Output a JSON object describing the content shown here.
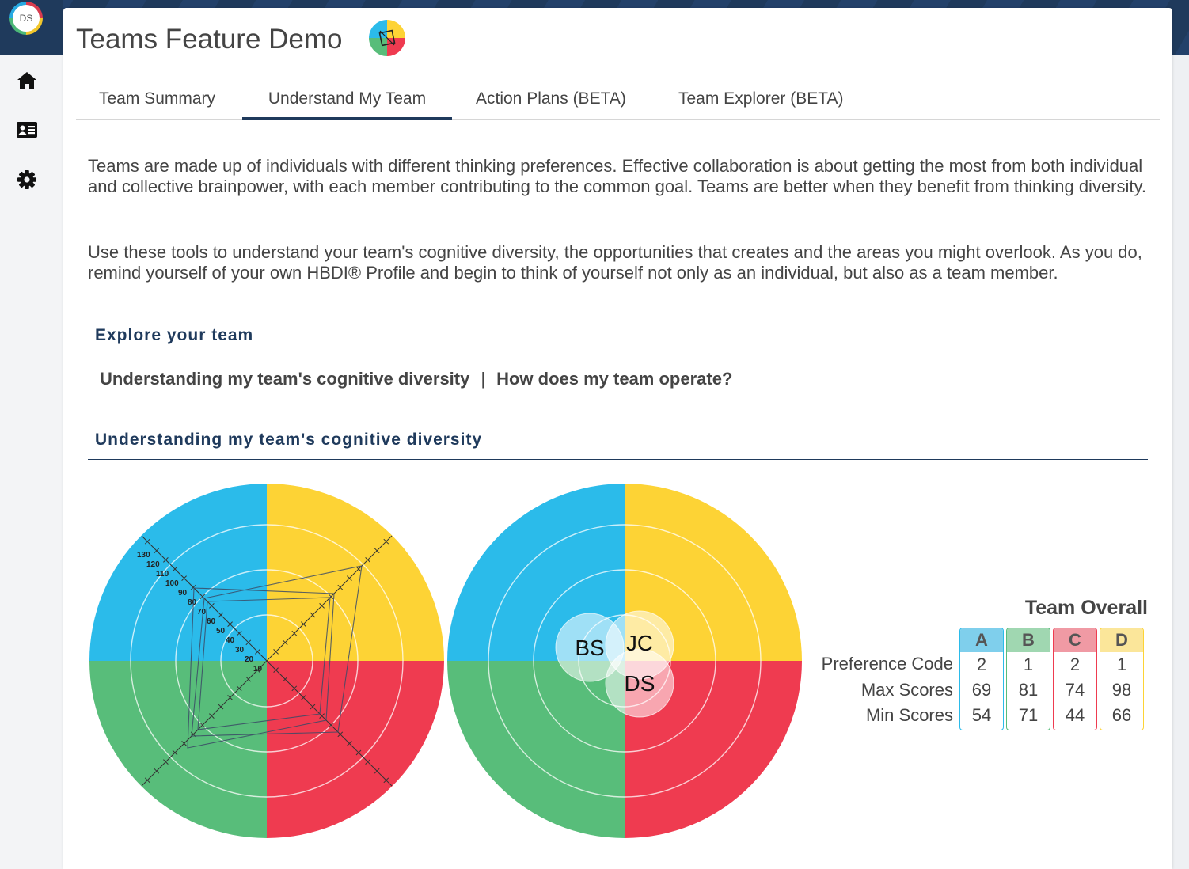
{
  "sidebar": {
    "avatar_initials": "DS",
    "nav": [
      {
        "name": "home-icon"
      },
      {
        "name": "profile-card-icon"
      },
      {
        "name": "settings-gear-icon"
      }
    ]
  },
  "page": {
    "title": "Teams Feature Demo"
  },
  "tabs": [
    {
      "label": "Team Summary",
      "active": false
    },
    {
      "label": "Understand My Team",
      "active": true
    },
    {
      "label": "Action Plans (BETA)",
      "active": false
    },
    {
      "label": "Team Explorer (BETA)",
      "active": false
    }
  ],
  "intro": {
    "p1": "Teams are made up of individuals with different thinking preferences. Effective collaboration is about getting the most from both individual and collective brainpower, with each member contributing to the common goal. Teams are better when they benefit from thinking diversity.",
    "p2": "Use these tools to understand your team's cognitive diversity, the opportunities that creates and the areas you might overlook. As you do, remind yourself of your own HBDI® Profile and begin to think of yourself not only as an individual, but also as a team member."
  },
  "explore": {
    "heading": "Explore your team",
    "link1": "Understanding my team's cognitive diversity",
    "separator": "|",
    "link2": "How does my team operate?"
  },
  "diversity": {
    "heading": "Understanding my team's cognitive diversity"
  },
  "quadrant_colors": {
    "A": "#2bbbea",
    "B": "#58bd7a",
    "C": "#ef3b50",
    "D": "#fdd335"
  },
  "radar_axis_ticks": [
    "10",
    "20",
    "30",
    "40",
    "50",
    "60",
    "70",
    "80",
    "90",
    "100",
    "110",
    "120",
    "130"
  ],
  "members": [
    "BS",
    "JC",
    "DS"
  ],
  "team_overall": {
    "title": "Team Overall",
    "row_labels": [
      "Preference Code",
      "Max Scores",
      "Min Scores"
    ],
    "columns": [
      {
        "key": "A",
        "pref": "2",
        "max": "69",
        "min": "54",
        "color": "#2bbbea",
        "header_bg": "#7fcfec"
      },
      {
        "key": "B",
        "pref": "1",
        "max": "81",
        "min": "71",
        "color": "#58bd7a",
        "header_bg": "#a0d7b1"
      },
      {
        "key": "C",
        "pref": "2",
        "max": "74",
        "min": "44",
        "color": "#ef3b50",
        "header_bg": "#f09aa4"
      },
      {
        "key": "D",
        "pref": "1",
        "max": "98",
        "min": "66",
        "color": "#fdd335",
        "header_bg": "#fbe69a"
      }
    ]
  }
}
